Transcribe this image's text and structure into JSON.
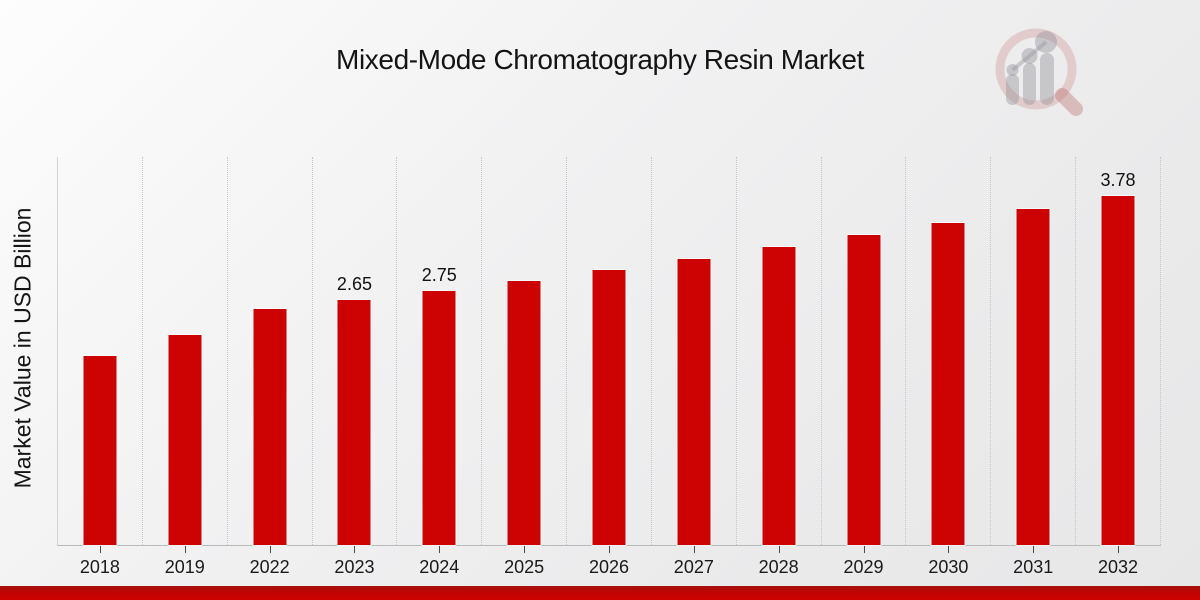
{
  "page": {
    "title": "Mixed-Mode Chromatography Resin Market",
    "y_axis_label": "Market Value in USD Billion"
  },
  "icons": {
    "logo": "magnifier-bar-chart-logo"
  },
  "style": {
    "accent_red": "#cc0302",
    "background_gray": "#ececec",
    "footer_red": "#c40401"
  },
  "chart_data": {
    "type": "bar",
    "title": "Mixed-Mode Chromatography Resin Market",
    "xlabel": "",
    "ylabel": "Market Value in USD Billion",
    "categories": [
      "2018",
      "2019",
      "2022",
      "2023",
      "2024",
      "2025",
      "2026",
      "2027",
      "2028",
      "2029",
      "2030",
      "2031",
      "2032"
    ],
    "values": [
      2.05,
      2.27,
      2.55,
      2.65,
      2.75,
      2.86,
      2.98,
      3.1,
      3.23,
      3.36,
      3.49,
      3.64,
      3.78
    ],
    "data_labels": [
      "",
      "",
      "",
      "2.65",
      "2.75",
      "",
      "",
      "",
      "",
      "",
      "",
      "",
      "3.78"
    ],
    "bar_color": "#cc0302",
    "ylim": [
      0,
      4.2
    ],
    "grid": "vertical-dotted-between-categories",
    "legend": "none",
    "y_tick_labels": "none"
  }
}
